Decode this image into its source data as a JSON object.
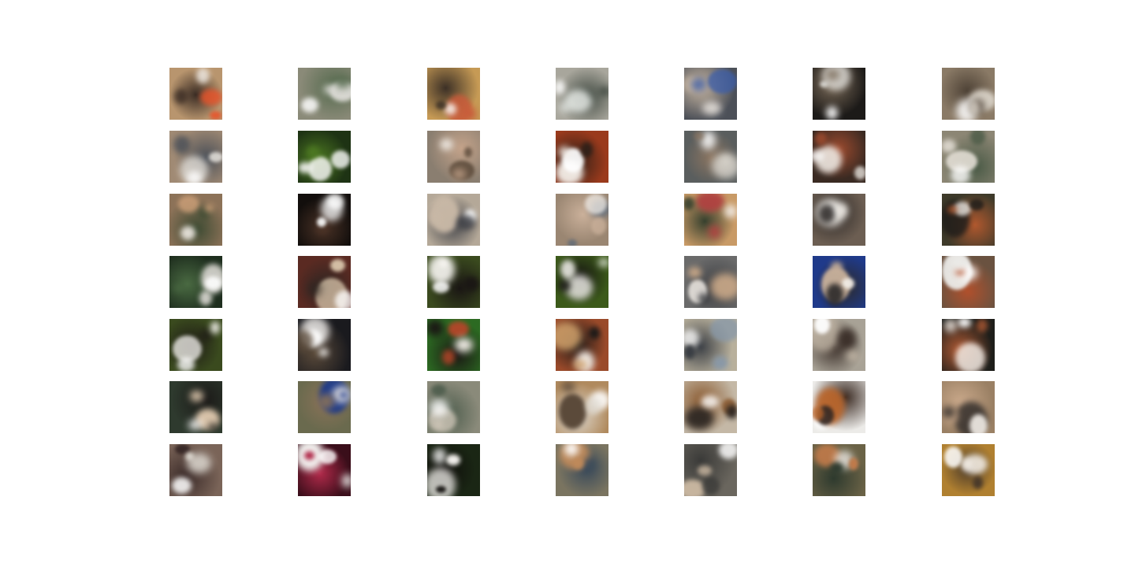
{
  "grid": {
    "rows": 7,
    "cols": 7,
    "tiles": [
      {
        "bg": "#b8956e",
        "accent": "#e8532a",
        "highlight": "#3a2c24",
        "light": "#f1ece6"
      },
      {
        "bg": "#8a8a78",
        "accent": "#e4e2de",
        "highlight": "#556a4e",
        "light": "#ffffff"
      },
      {
        "bg": "#c69a55",
        "accent": "#c85a3a",
        "highlight": "#3c3026",
        "light": "#f7f3ee"
      },
      {
        "bg": "#a8a69c",
        "accent": "#e8ece8",
        "highlight": "#414a42",
        "light": "#ffffff"
      },
      {
        "bg": "#4c5058",
        "accent": "#3d5ea8",
        "highlight": "#c9b7a2",
        "light": "#f1ece6"
      },
      {
        "bg": "#1c1a18",
        "accent": "#d9d7d2",
        "highlight": "#7a6a58",
        "light": "#ffffff"
      },
      {
        "bg": "#8a7a66",
        "accent": "#d6cfc4",
        "highlight": "#4e4236",
        "light": "#ffffff"
      },
      {
        "bg": "#a08a74",
        "accent": "#e6e3dd",
        "highlight": "#4b5058",
        "light": "#ffffff"
      },
      {
        "bg": "#1e3314",
        "accent": "#f6f6f4",
        "highlight": "#4e7a22",
        "light": "#ffffff"
      },
      {
        "bg": "#8a7e70",
        "accent": "#5b4a3a",
        "highlight": "#c4a38a",
        "light": "#f1ece6"
      },
      {
        "bg": "#9a3a1c",
        "accent": "#f4eee8",
        "highlight": "#2c1f18",
        "light": "#ffffff"
      },
      {
        "bg": "#5a5e5e",
        "accent": "#d6d2ca",
        "highlight": "#8a7460",
        "light": "#ffffff"
      },
      {
        "bg": "#3a2a22",
        "accent": "#f2eee8",
        "highlight": "#9c4a2e",
        "light": "#ffffff"
      },
      {
        "bg": "#8c8674",
        "accent": "#e2ddd4",
        "highlight": "#4a5a46",
        "light": "#ffffff"
      },
      {
        "bg": "#8c7258",
        "accent": "#d0a27a",
        "highlight": "#3c4a32",
        "light": "#f1ece6"
      },
      {
        "bg": "#120e0c",
        "accent": "#f6f6f6",
        "highlight": "#4a3226",
        "light": "#ffffff"
      },
      {
        "bg": "#b4a898",
        "accent": "#c8b8a6",
        "highlight": "#3e4046",
        "light": "#ffffff"
      },
      {
        "bg": "#9a8672",
        "accent": "#5b6878",
        "highlight": "#cab09a",
        "light": "#f1ece6"
      },
      {
        "bg": "#c89a66",
        "accent": "#b04040",
        "highlight": "#36402e",
        "light": "#f1ece6"
      },
      {
        "bg": "#6c5e52",
        "accent": "#ece8e2",
        "highlight": "#2e2a28",
        "light": "#ffffff"
      },
      {
        "bg": "#3e3a2a",
        "accent": "#1d1c1a",
        "highlight": "#b0582e",
        "light": "#f1ece6"
      },
      {
        "bg": "#1e2e1e",
        "accent": "#d8d6d0",
        "highlight": "#4a6a42",
        "light": "#ffffff"
      },
      {
        "bg": "#5a2a22",
        "accent": "#d8c4aa",
        "highlight": "#2e2622",
        "light": "#ffffff"
      },
      {
        "bg": "#3a4a1e",
        "accent": "#f6f4f0",
        "highlight": "#1a1614",
        "light": "#ffffff"
      },
      {
        "bg": "#3c5a1a",
        "accent": "#f4f2ee",
        "highlight": "#161412",
        "light": "#ffffff"
      },
      {
        "bg": "#6a6a6a",
        "accent": "#c9a888",
        "highlight": "#3a3c40",
        "light": "#f1ece6"
      },
      {
        "bg": "#1f3a8a",
        "accent": "#c8b09a",
        "highlight": "#2c2a2a",
        "light": "#f1ece6"
      },
      {
        "bg": "#6a5240",
        "accent": "#ecebe8",
        "highlight": "#b0502c",
        "light": "#ffffff"
      },
      {
        "bg": "#3a4a1e",
        "accent": "#f4f2ee",
        "highlight": "#1e1a16",
        "light": "#ffffff"
      },
      {
        "bg": "#1a1a1e",
        "accent": "#f2f0ee",
        "highlight": "#5a4a3a",
        "light": "#ffffff"
      },
      {
        "bg": "#2c6a22",
        "accent": "#b8462a",
        "highlight": "#1a1614",
        "light": "#f1ece6"
      },
      {
        "bg": "#9a4a2a",
        "accent": "#cfa06a",
        "highlight": "#1d1a18",
        "light": "#f1ece6"
      },
      {
        "bg": "#b8b09c",
        "accent": "#8898a8",
        "highlight": "#3a3e44",
        "light": "#ffffff"
      },
      {
        "bg": "#a8a296",
        "accent": "#c0b4a4",
        "highlight": "#3a2e28",
        "light": "#ffffff"
      },
      {
        "bg": "#1e1e1a",
        "accent": "#f2ece6",
        "highlight": "#b05a34",
        "light": "#ffffff"
      },
      {
        "bg": "#2e3a2e",
        "accent": "#dac4aa",
        "highlight": "#1c1a18",
        "light": "#ffffff"
      },
      {
        "bg": "#6a6a4e",
        "accent": "#1d3a8a",
        "highlight": "#8a7258",
        "light": "#f1ece6"
      },
      {
        "bg": "#8a8a7a",
        "accent": "#d6ccbe",
        "highlight": "#4a5a4a",
        "light": "#ffffff"
      },
      {
        "bg": "#b08a5e",
        "accent": "#5b4a3a",
        "highlight": "#e0dcd4",
        "light": "#ffffff"
      },
      {
        "bg": "#c4b8a6",
        "accent": "#2a2420",
        "highlight": "#8a5a30",
        "light": "#ffffff"
      },
      {
        "bg": "#ecebe8",
        "accent": "#b8642a",
        "highlight": "#3a2a22",
        "light": "#ffffff"
      },
      {
        "bg": "#9a8064",
        "accent": "#3a3430",
        "highlight": "#c9a88a",
        "light": "#f1ece6"
      },
      {
        "bg": "#7a6458",
        "accent": "#e6e2da",
        "highlight": "#3a2a28",
        "light": "#ffffff"
      },
      {
        "bg": "#3a0e1a",
        "accent": "#f2f0ee",
        "highlight": "#b02a4a",
        "light": "#ffffff"
      },
      {
        "bg": "#1a2614",
        "accent": "#f4f2ee",
        "highlight": "#0e0c0a",
        "light": "#ffffff"
      },
      {
        "bg": "#7a7460",
        "accent": "#c08a5a",
        "highlight": "#3a4a5a",
        "light": "#ffffff"
      },
      {
        "bg": "#6a665e",
        "accent": "#c8b6a0",
        "highlight": "#3a3a38",
        "light": "#ffffff"
      },
      {
        "bg": "#6a6246",
        "accent": "#c07a4a",
        "highlight": "#2e3a2e",
        "light": "#f1ece6"
      },
      {
        "bg": "#b08030",
        "accent": "#f2ece4",
        "highlight": "#4a3a2a",
        "light": "#ffffff"
      }
    ]
  }
}
